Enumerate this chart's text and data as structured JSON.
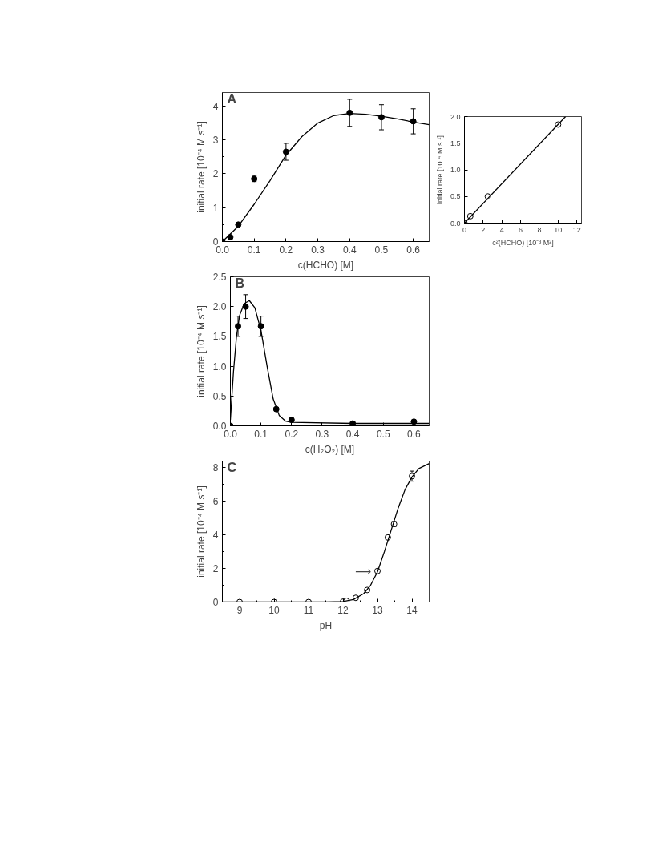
{
  "chart_data": [
    {
      "type": "line",
      "title": "A",
      "xlabel": "c(HCHO) [M]",
      "ylabel": "initial rate [10⁻⁴ M s⁻¹]",
      "xlim": [
        0,
        0.65
      ],
      "ylim": [
        0,
        4.4
      ],
      "xticks": [
        {
          "value": 0,
          "label": "0.0"
        },
        0.1,
        0.2,
        0.3,
        0.4,
        0.5,
        0.6
      ],
      "yticks": [
        0,
        {
          "value": 0.5,
          "label": null
        },
        1,
        {
          "value": 1.5,
          "label": null
        },
        2,
        {
          "value": 2.5,
          "label": null
        },
        3,
        {
          "value": 3.5,
          "label": null
        },
        4
      ],
      "x": [
        0,
        0.025,
        0.05,
        0.1,
        0.2,
        0.4,
        0.5,
        0.6
      ],
      "series": [
        {
          "type": "scatter",
          "marker": "circle",
          "color": "#000000",
          "values": [
            0,
            0.13,
            0.5,
            1.85,
            2.65,
            3.8,
            3.67,
            3.55
          ],
          "errors": [
            null,
            null,
            null,
            0.08,
            0.25,
            0.4,
            0.37,
            0.37
          ]
        },
        {
          "color": "#000000",
          "x": [
            0,
            0.05,
            0.1,
            0.15,
            0.2,
            0.25,
            0.3,
            0.35,
            0.4,
            0.45,
            0.5,
            0.55,
            0.6,
            0.65
          ],
          "values": [
            0,
            0.45,
            1.1,
            1.8,
            2.55,
            3.1,
            3.5,
            3.72,
            3.78,
            3.76,
            3.7,
            3.62,
            3.53,
            3.45
          ]
        }
      ]
    },
    {
      "type": "line",
      "xlabel": "c²(HCHO) [10⁻³ M²]",
      "ylabel": "initial rate [10⁻⁴ M s⁻¹]",
      "xlim": [
        0,
        12.5
      ],
      "ylim": [
        0,
        2
      ],
      "xticks": [
        0,
        2,
        4,
        6,
        8,
        10,
        12
      ],
      "yticks": [
        {
          "value": 0,
          "label": "0.0"
        },
        0.5,
        {
          "value": 1,
          "label": "1.0"
        },
        1.5,
        {
          "value": 2,
          "label": "2.0"
        }
      ],
      "x": [
        0,
        0.625,
        2.5,
        10
      ],
      "series": [
        {
          "type": "scatter",
          "marker": "circle",
          "color": "#ffffff",
          "values": [
            0,
            0.13,
            0.5,
            1.85
          ]
        },
        {
          "color": "#000000",
          "x": [
            0,
            10.8
          ],
          "values": [
            0,
            2
          ]
        }
      ]
    },
    {
      "type": "line",
      "title": "B",
      "xlabel": "c(H₂O₂) [M]",
      "ylabel": "initial rate [10⁻⁴ M s⁻¹]",
      "xlim": [
        0,
        0.65
      ],
      "ylim": [
        0,
        2.5
      ],
      "xticks": [
        {
          "value": 0,
          "label": "0.0"
        },
        0.1,
        0.2,
        0.3,
        0.4,
        0.5,
        0.6
      ],
      "yticks": [
        {
          "value": 0,
          "label": "0.0"
        },
        0.5,
        {
          "value": 1,
          "label": "1.0"
        },
        1.5,
        {
          "value": 2,
          "label": "2.0"
        },
        2.5
      ],
      "x": [
        0,
        0.025,
        0.05,
        0.1,
        0.15,
        0.2,
        0.4,
        0.6
      ],
      "series": [
        {
          "type": "scatter",
          "marker": "circle",
          "color": "#000000",
          "values": [
            0,
            1.67,
            2.0,
            1.67,
            0.28,
            0.1,
            0.04,
            0.07
          ],
          "errors": [
            null,
            0.17,
            0.2,
            0.17,
            null,
            null,
            null,
            null
          ]
        },
        {
          "color": "#000000",
          "x": [
            0,
            0.01,
            0.02,
            0.03,
            0.045,
            0.062,
            0.08,
            0.1,
            0.12,
            0.14,
            0.16,
            0.18,
            0.2,
            0.4,
            0.65
          ],
          "values": [
            0.1,
            0.9,
            1.5,
            1.85,
            2.05,
            2.1,
            1.98,
            1.6,
            1.0,
            0.45,
            0.17,
            0.08,
            0.06,
            0.04,
            0.04
          ]
        }
      ]
    },
    {
      "type": "line",
      "title": "C",
      "xlabel": "pH",
      "ylabel": "initial rate [10⁻⁴ M s⁻¹]",
      "xlim": [
        8.5,
        14.5
      ],
      "ylim": [
        0,
        8.4
      ],
      "xticks": [
        {
          "value": 8.5,
          "label": null
        },
        9,
        {
          "value": 9.5,
          "label": null
        },
        10,
        {
          "value": 10.5,
          "label": null
        },
        11,
        {
          "value": 11.5,
          "label": null
        },
        12,
        {
          "value": 12.5,
          "label": null
        },
        13,
        {
          "value": 13.5,
          "label": null
        },
        14
      ],
      "yticks": [
        0,
        {
          "value": 1,
          "label": null
        },
        2,
        {
          "value": 3,
          "label": null
        },
        4,
        {
          "value": 5,
          "label": null
        },
        6,
        {
          "value": 7,
          "label": null
        },
        8
      ],
      "x": [
        9,
        10,
        11,
        12,
        12.1,
        12.37,
        12.7,
        13,
        13.3,
        13.48,
        14
      ],
      "annotations": [
        {
          "text": "⟶",
          "x": 13,
          "y": 1.85
        }
      ],
      "series": [
        {
          "type": "scatter",
          "marker": "circle",
          "color": "#ffffff",
          "values": [
            0,
            0,
            0,
            0.02,
            0.07,
            0.25,
            0.72,
            1.85,
            3.85,
            4.65,
            7.5
          ],
          "errors": [
            null,
            null,
            null,
            null,
            null,
            null,
            null,
            null,
            0.1,
            0.15,
            0.3
          ]
        },
        {
          "color": "#000000",
          "x": [
            8.5,
            11.5,
            12,
            12.3,
            12.6,
            12.8,
            13,
            13.2,
            13.4,
            13.6,
            13.8,
            14,
            14.2,
            14.5
          ],
          "values": [
            0,
            0,
            0.03,
            0.15,
            0.5,
            1.0,
            1.8,
            3.0,
            4.3,
            5.6,
            6.7,
            7.45,
            7.95,
            8.25
          ]
        }
      ]
    }
  ]
}
